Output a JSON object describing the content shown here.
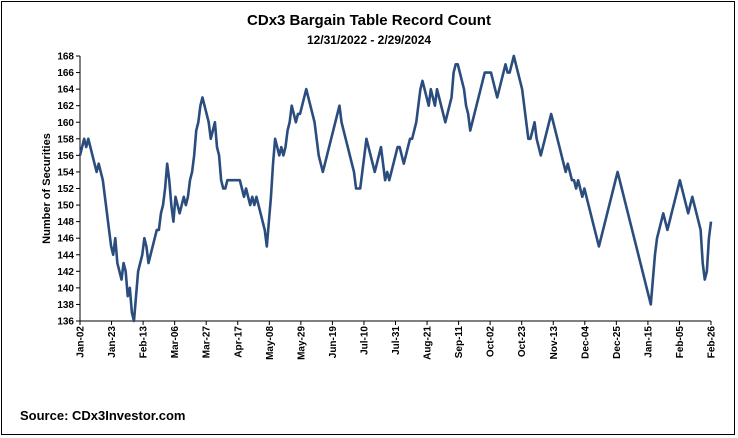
{
  "chart_data": {
    "type": "line",
    "title": "CDx3 Bargain Table Record Count",
    "subtitle": "12/31/2022 - 2/29/2024",
    "xlabel": "",
    "ylabel": "Number of Securities",
    "ylim": [
      136,
      168
    ],
    "yticks": [
      136,
      138,
      140,
      142,
      144,
      146,
      148,
      150,
      152,
      154,
      156,
      158,
      160,
      162,
      164,
      166,
      168
    ],
    "xtick_labels": [
      "Jan-02",
      "Jan-23",
      "Feb-13",
      "Mar-06",
      "Mar-27",
      "Apr-17",
      "May-08",
      "May-29",
      "Jun-19",
      "Jul-10",
      "Jul-31",
      "Aug-21",
      "Sep-11",
      "Oct-02",
      "Oct-23",
      "Nov-13",
      "Dec-04",
      "Dec-25",
      "Jan-15",
      "Feb-05",
      "Feb-26"
    ],
    "grid": false,
    "color": "#2b4d7e",
    "series": [
      {
        "name": "Record Count",
        "values": [
          156,
          157,
          158,
          157,
          158,
          157,
          156,
          155,
          154,
          155,
          154,
          153,
          151,
          149,
          147,
          145,
          144,
          146,
          143,
          142,
          141,
          143,
          142,
          139,
          140,
          137,
          136,
          139,
          142,
          143,
          144,
          146,
          145,
          143,
          144,
          145,
          146,
          147,
          147,
          149,
          150,
          152,
          155,
          153,
          150,
          148,
          151,
          150,
          149,
          150,
          151,
          150,
          151,
          153,
          154,
          156,
          159,
          160,
          162,
          163,
          162,
          161,
          160,
          158,
          159,
          160,
          157,
          156,
          153,
          152,
          152,
          153,
          153,
          153,
          153,
          153,
          153,
          153,
          152,
          151,
          152,
          151,
          150,
          151,
          150,
          151,
          150,
          149,
          148,
          147,
          145,
          148,
          151,
          155,
          158,
          157,
          156,
          157,
          156,
          157,
          159,
          160,
          162,
          161,
          160,
          161,
          161,
          162,
          163,
          164,
          163,
          162,
          161,
          160,
          158,
          156,
          155,
          154,
          155,
          156,
          157,
          158,
          159,
          160,
          161,
          162,
          160,
          159,
          158,
          157,
          156,
          155,
          154,
          152,
          152,
          152,
          154,
          156,
          158,
          157,
          156,
          155,
          154,
          155,
          156,
          157,
          155,
          153,
          154,
          153,
          154,
          155,
          156,
          157,
          157,
          156,
          155,
          156,
          157,
          158,
          158,
          159,
          160,
          162,
          164,
          165,
          164,
          163,
          162,
          164,
          163,
          162,
          164,
          163,
          162,
          161,
          160,
          161,
          162,
          163,
          166,
          167,
          167,
          166,
          165,
          164,
          162,
          161,
          159,
          160,
          161,
          162,
          163,
          164,
          165,
          166,
          166,
          166,
          166,
          165,
          164,
          163,
          164,
          165,
          166,
          167,
          166,
          166,
          167,
          168,
          167,
          166,
          165,
          164,
          162,
          160,
          158,
          158,
          159,
          160,
          158,
          157,
          156,
          157,
          158,
          159,
          160,
          161,
          160,
          159,
          158,
          157,
          156,
          155,
          154,
          155,
          154,
          153,
          153,
          152,
          153,
          152,
          151,
          152,
          151,
          150,
          149,
          148,
          147,
          146,
          145,
          146,
          147,
          148,
          149,
          150,
          151,
          152,
          153,
          154,
          153,
          152,
          151,
          150,
          149,
          148,
          147,
          146,
          145,
          144,
          143,
          142,
          141,
          140,
          139,
          138,
          141,
          144,
          146,
          147,
          148,
          149,
          148,
          147,
          148,
          149,
          150,
          151,
          152,
          153,
          152,
          151,
          150,
          149,
          150,
          151,
          150,
          149,
          148,
          147,
          143,
          141,
          142,
          146,
          148
        ]
      }
    ]
  },
  "footer": {
    "source": "Source: CDx3Investor.com"
  }
}
